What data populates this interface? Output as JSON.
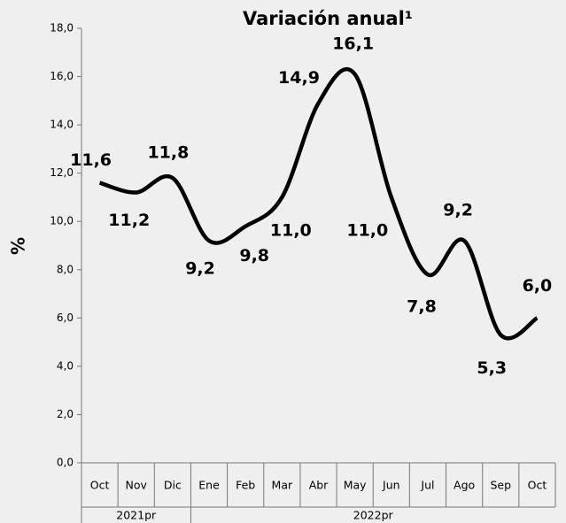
{
  "chart_data": {
    "type": "line",
    "title": "Variación anual¹",
    "y_label": "%",
    "categories": [
      "Oct",
      "Nov",
      "Dic",
      "Ene",
      "Feb",
      "Mar",
      "Abr",
      "May",
      "Jun",
      "Jul",
      "Ago",
      "Sep",
      "Oct"
    ],
    "series": [
      {
        "name": "Variación anual",
        "color": "#000000",
        "values": [
          11.6,
          11.2,
          11.8,
          9.2,
          9.8,
          11.0,
          14.9,
          16.1,
          11.0,
          7.8,
          9.2,
          5.3,
          6.0
        ],
        "value_labels": [
          "11,6",
          "11,2",
          "11,8",
          "9,2",
          "9,8",
          "11,0",
          "14,9",
          "16,1",
          "11,0",
          "7,8",
          "9,2",
          "5,3",
          "6,0"
        ]
      }
    ],
    "groups": [
      {
        "label": "2021pr",
        "span": 3
      },
      {
        "label": "2022pr",
        "span": 10
      }
    ],
    "ylim": [
      0,
      18
    ],
    "yticks": [
      {
        "value": 0,
        "label": "0,0"
      },
      {
        "value": 2,
        "label": "2,0"
      },
      {
        "value": 4,
        "label": "4,0"
      },
      {
        "value": 6,
        "label": "6,0"
      },
      {
        "value": 8,
        "label": "8,0"
      },
      {
        "value": 10,
        "label": "10,0"
      },
      {
        "value": 12,
        "label": "12,0"
      },
      {
        "value": 14,
        "label": "14,0"
      },
      {
        "value": 16,
        "label": "16,0"
      },
      {
        "value": 18,
        "label": "18,0"
      }
    ]
  }
}
